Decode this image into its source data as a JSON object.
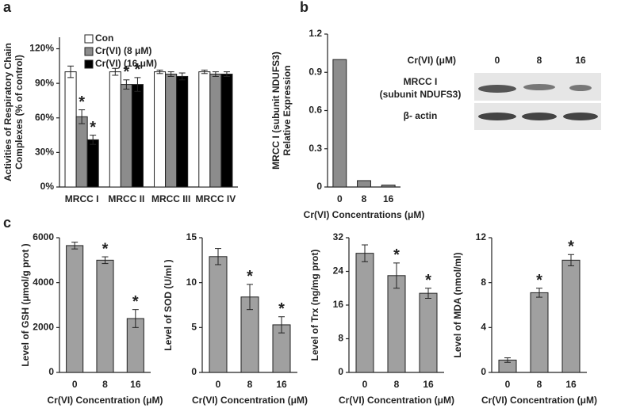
{
  "chart_data": [
    {
      "type": "bar",
      "panel_label": "a",
      "categories": [
        "MRCC I",
        "MRCC II",
        "MRCC III",
        "MRCC IV"
      ],
      "ylabel": [
        "Activities of Respiratory Chain",
        "Complexes (% of control)"
      ],
      "ylim": [
        0,
        130
      ],
      "yticks": [
        {
          "value": 0,
          "label": "0%"
        },
        {
          "value": 30,
          "label": "30%"
        },
        {
          "value": 60,
          "label": "60%"
        },
        {
          "value": 90,
          "label": "90%"
        },
        {
          "value": 120,
          "label": "120%"
        }
      ],
      "series": [
        {
          "name": "Con",
          "color": "#ffffff",
          "values": [
            100,
            100,
            100,
            100
          ],
          "errors": [
            5,
            3,
            1.5,
            1.5
          ],
          "significance": [
            null,
            null,
            null,
            null
          ]
        },
        {
          "name": "Cr(VI) (8 μM)",
          "color": "#8c8c8c",
          "values": [
            61,
            89,
            98,
            98
          ],
          "errors": [
            6,
            4,
            2,
            2
          ],
          "significance": [
            "*",
            "*",
            null,
            null
          ]
        },
        {
          "name": "Cr(VI) (16 μM)",
          "color": "#000000",
          "values": [
            41,
            89,
            96,
            98
          ],
          "errors": [
            4,
            6,
            3,
            2
          ],
          "significance": [
            "*",
            "*",
            null,
            null
          ]
        }
      ]
    },
    {
      "type": "bar",
      "panel_label": "b",
      "categories": [
        "0",
        "8",
        "16"
      ],
      "values": [
        1.0,
        0.05,
        0.015
      ],
      "color": "#8c8c8c",
      "xlabel": "Cr(VI) Concentrations (μM)",
      "ylabel": [
        "MRCC I (subunit NDUFS3)",
        "Relative Expression"
      ],
      "ylim": [
        0,
        1.2
      ],
      "yticks": [
        0,
        0.3,
        0.6,
        0.9,
        1.2
      ]
    },
    {
      "type": "bar",
      "panel_label": "c",
      "categories": [
        "0",
        "8",
        "16"
      ],
      "values": [
        5650,
        5000,
        2400
      ],
      "errors": [
        150,
        150,
        400
      ],
      "significance": [
        null,
        "*",
        "*"
      ],
      "color": "#a0a0a0",
      "xlabel": "Cr(VI) Concentration (μM)",
      "ylabel": [
        "Level of GSH (μmol/g prot )"
      ],
      "ylim": [
        0,
        6000
      ],
      "yticks": [
        0,
        2000,
        4000,
        6000
      ]
    },
    {
      "type": "bar",
      "categories": [
        "0",
        "8",
        "16"
      ],
      "values": [
        12.9,
        8.4,
        5.3
      ],
      "errors": [
        0.9,
        1.4,
        0.9
      ],
      "significance": [
        null,
        "*",
        "*"
      ],
      "color": "#a0a0a0",
      "xlabel": "Cr(VI) Concentration (μM)",
      "ylabel": [
        "Level of SOD (U/ml )"
      ],
      "ylim": [
        0,
        15
      ],
      "yticks": [
        0,
        5,
        10,
        15
      ]
    },
    {
      "type": "bar",
      "categories": [
        "0",
        "8",
        "16"
      ],
      "values": [
        28.3,
        23,
        18.8
      ],
      "errors": [
        2,
        3,
        1.2
      ],
      "significance": [
        null,
        "*",
        "*"
      ],
      "color": "#a0a0a0",
      "xlabel": "Cr(VI) Concentration (μM)",
      "ylabel": [
        "Level of Trx (ng/mg prot)"
      ],
      "ylim": [
        0,
        32
      ],
      "yticks": [
        0,
        8,
        16,
        24,
        32
      ]
    },
    {
      "type": "bar",
      "categories": [
        "0",
        "8",
        "16"
      ],
      "values": [
        1.1,
        7.1,
        10
      ],
      "errors": [
        0.2,
        0.4,
        0.5
      ],
      "significance": [
        null,
        "*",
        "*"
      ],
      "color": "#a0a0a0",
      "xlabel": "Cr(VI) Concentration (μM)",
      "ylabel": [
        "Level of MDA (nmol/ml)"
      ],
      "ylim": [
        0,
        12
      ],
      "yticks": [
        0,
        4,
        8,
        12
      ]
    }
  ],
  "blot": {
    "header": "Cr(VI) (μM)",
    "lanes": [
      "0",
      "8",
      "16"
    ],
    "rows": [
      [
        "MRCC I",
        "(subunit NDUFS3)"
      ],
      [
        "β- actin"
      ]
    ]
  }
}
